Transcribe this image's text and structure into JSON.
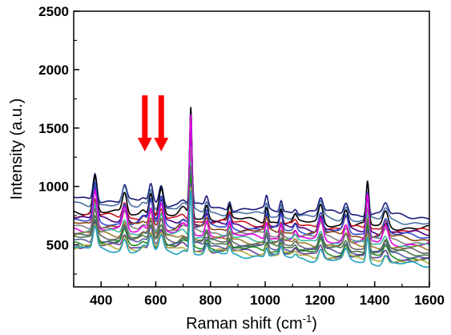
{
  "chart_data": {
    "type": "line",
    "title": "",
    "xlabel": "Raman shift (cm",
    "xlabel_superscript": "-1",
    "xlabel_suffix": ")",
    "ylabel": "Intensity (a.u.)",
    "xlim": [
      300,
      1600
    ],
    "ylim": [
      140,
      2500
    ],
    "xticks": [
      400,
      600,
      800,
      1000,
      1200,
      1400,
      1600
    ],
    "yticks": [
      500,
      1000,
      1500,
      2000,
      2500
    ],
    "grid": false,
    "legend": "none",
    "annotations": [
      {
        "type": "arrow",
        "color": "#ff0000",
        "x": 560,
        "y_from": 1780,
        "y_to": 1300
      },
      {
        "type": "arrow",
        "color": "#ff0000",
        "x": 620,
        "y_from": 1780,
        "y_to": 1300
      }
    ],
    "peaks": [
      {
        "x": 378,
        "h": 0.6,
        "w": 7
      },
      {
        "x": 486,
        "h": 0.34,
        "w": 8
      },
      {
        "x": 555,
        "h": 0.1,
        "w": 10
      },
      {
        "x": 582,
        "h": 0.4,
        "w": 7
      },
      {
        "x": 620,
        "h": 0.44,
        "w": 8
      },
      {
        "x": 700,
        "h": 0.12,
        "w": 12
      },
      {
        "x": 728,
        "h": 1.8,
        "w": 4.5
      },
      {
        "x": 786,
        "h": 0.22,
        "w": 6
      },
      {
        "x": 870,
        "h": 0.2,
        "w": 5
      },
      {
        "x": 1005,
        "h": 0.26,
        "w": 5
      },
      {
        "x": 1058,
        "h": 0.24,
        "w": 5
      },
      {
        "x": 1110,
        "h": 0.1,
        "w": 6
      },
      {
        "x": 1203,
        "h": 0.3,
        "w": 8
      },
      {
        "x": 1295,
        "h": 0.26,
        "w": 8
      },
      {
        "x": 1374,
        "h": 0.7,
        "w": 5
      },
      {
        "x": 1440,
        "h": 0.24,
        "w": 9
      }
    ],
    "series": [
      {
        "color": "#1a1a7a",
        "base_start": 900,
        "base_mid": 800,
        "base_end": 740,
        "scale": 400
      },
      {
        "color": "#4a6fa5",
        "base_start": 860,
        "base_mid": 760,
        "base_end": 690,
        "scale": 420
      },
      {
        "color": "#000000",
        "base_start": 790,
        "base_mid": 710,
        "base_end": 640,
        "scale": 520
      },
      {
        "color": "#d4141e",
        "base_start": 760,
        "base_mid": 680,
        "base_end": 610,
        "scale": 400
      },
      {
        "color": "#4b0082",
        "base_start": 730,
        "base_mid": 660,
        "base_end": 590,
        "scale": 410
      },
      {
        "color": "#2f4fd0",
        "base_start": 700,
        "base_mid": 640,
        "base_end": 570,
        "scale": 530
      },
      {
        "color": "#8b4513",
        "base_start": 680,
        "base_mid": 620,
        "base_end": 550,
        "scale": 380
      },
      {
        "color": "#808080",
        "base_start": 660,
        "base_mid": 590,
        "base_end": 520,
        "scale": 390
      },
      {
        "color": "#e600e6",
        "base_start": 640,
        "base_mid": 570,
        "base_end": 500,
        "scale": 560
      },
      {
        "color": "#3cb8a0",
        "base_start": 620,
        "base_mid": 550,
        "base_end": 480,
        "scale": 360
      },
      {
        "color": "#a08030",
        "base_start": 600,
        "base_mid": 530,
        "base_end": 460,
        "scale": 350
      },
      {
        "color": "#666666",
        "base_start": 580,
        "base_mid": 510,
        "base_end": 440,
        "scale": 360
      },
      {
        "color": "#4a7a4a",
        "base_start": 560,
        "base_mid": 495,
        "base_end": 420,
        "scale": 330
      },
      {
        "color": "#5a5aa0",
        "base_start": 540,
        "base_mid": 480,
        "base_end": 400,
        "scale": 340
      },
      {
        "color": "#228b22",
        "base_start": 520,
        "base_mid": 460,
        "base_end": 380,
        "scale": 330
      },
      {
        "color": "#6a3d9a",
        "base_start": 500,
        "base_mid": 440,
        "base_end": 360,
        "scale": 320
      },
      {
        "color": "#b0b040",
        "base_start": 490,
        "base_mid": 430,
        "base_end": 340,
        "scale": 310
      },
      {
        "color": "#20a0c0",
        "base_start": 470,
        "base_mid": 410,
        "base_end": 320,
        "scale": 300
      }
    ]
  }
}
